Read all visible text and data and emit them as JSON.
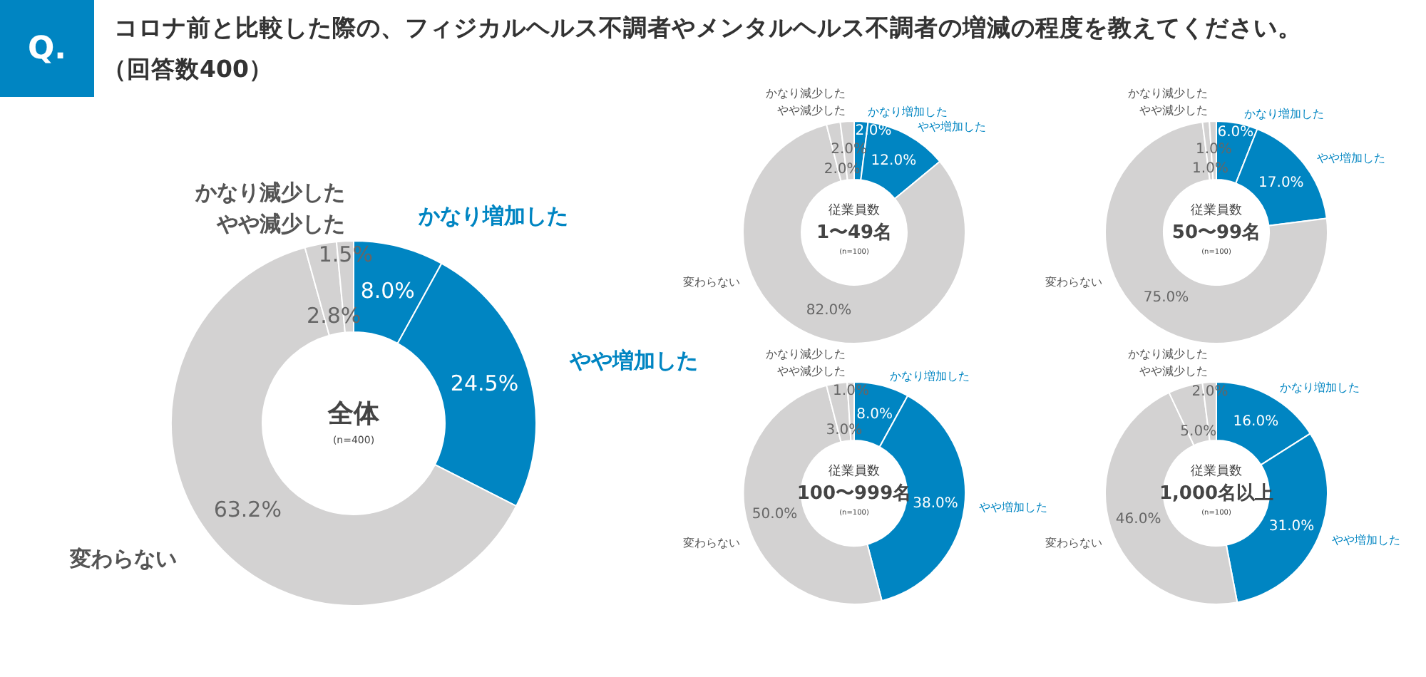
{
  "chart_data": [
    {
      "type": "donut",
      "title": "コロナ前と比較した際の、フィジカルヘルス不調者やメンタルヘルス不調者の増減の程度を教えてください。",
      "subtitle": "（回答数400）",
      "annotations": [
        "Q.",
        "全体",
        "(n=400)"
      ],
      "categories": [
        "かなり増加した",
        "やや増加した",
        "変わらない",
        "やや減少した",
        "かなり減少した"
      ],
      "values": [
        8.0,
        24.5,
        63.2,
        2.8,
        1.5
      ],
      "value_labels": [
        "8.0%",
        "24.5%",
        "63.2%",
        "2.8%",
        "1.5%"
      ],
      "colors": [
        "#0085c2",
        "#0085c2",
        "#d3d2d2",
        "#d3d2d2",
        "#d3d2d2"
      ]
    },
    {
      "type": "donut",
      "annotations": [
        "従業員数",
        "1〜49名",
        "(n=100)"
      ],
      "categories": [
        "かなり増加した",
        "やや増加した",
        "変わらない",
        "やや減少した",
        "かなり減少した"
      ],
      "values": [
        2.0,
        12.0,
        82.0,
        2.0,
        2.0
      ],
      "value_labels": [
        "2.0%",
        "12.0%",
        "82.0%",
        "2.0%",
        "2.0%"
      ],
      "colors": [
        "#0085c2",
        "#0085c2",
        "#d3d2d2",
        "#d3d2d2",
        "#d3d2d2"
      ]
    },
    {
      "type": "donut",
      "annotations": [
        "従業員数",
        "50〜99名",
        "(n=100)"
      ],
      "categories": [
        "かなり増加した",
        "やや増加した",
        "変わらない",
        "やや減少した",
        "かなり減少した"
      ],
      "values": [
        6.0,
        17.0,
        75.0,
        1.0,
        1.0
      ],
      "value_labels": [
        "6.0%",
        "17.0%",
        "75.0%",
        "1.0%",
        "1.0%"
      ],
      "colors": [
        "#0085c2",
        "#0085c2",
        "#d3d2d2",
        "#d3d2d2",
        "#d3d2d2"
      ]
    },
    {
      "type": "donut",
      "annotations": [
        "従業員数",
        "100〜999名",
        "(n=100)"
      ],
      "categories": [
        "かなり増加した",
        "やや増加した",
        "変わらない",
        "やや減少した",
        "かなり減少した"
      ],
      "values": [
        8.0,
        38.0,
        50.0,
        3.0,
        1.0
      ],
      "value_labels": [
        "8.0%",
        "38.0%",
        "50.0%",
        "3.0%",
        "1.0%"
      ],
      "colors": [
        "#0085c2",
        "#0085c2",
        "#d3d2d2",
        "#d3d2d2",
        "#d3d2d2"
      ]
    },
    {
      "type": "donut",
      "annotations": [
        "従業員数",
        "1,000名以上",
        "(n=100)"
      ],
      "categories": [
        "かなり増加した",
        "やや増加した",
        "変わらない",
        "やや減少した",
        "かなり減少した"
      ],
      "values": [
        16.0,
        31.0,
        46.0,
        5.0,
        2.0
      ],
      "value_labels": [
        "16.0%",
        "31.0%",
        "46.0%",
        "5.0%",
        "2.0%"
      ],
      "colors": [
        "#0085c2",
        "#0085c2",
        "#d3d2d2",
        "#d3d2d2",
        "#d3d2d2"
      ]
    }
  ]
}
